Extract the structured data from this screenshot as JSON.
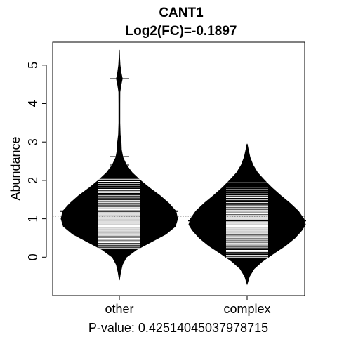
{
  "chart_data": {
    "type": "beanplot",
    "title": "CANT1",
    "subtitle": "Log2(FC)=-0.1897",
    "xlabel": "",
    "ylabel": "Abundance",
    "footer": "P-value: 0.42514045037978715",
    "categories": [
      "other",
      "complex"
    ],
    "yticks": [
      0,
      1,
      2,
      3,
      4,
      5
    ],
    "ylim": [
      -1.0,
      5.6
    ],
    "overall_mean": 1.07,
    "grid": false,
    "beans": [
      {
        "category": "other",
        "mean": 1.2,
        "min": -0.6,
        "max": 5.4,
        "profile": [
          [
            -0.6,
            0.0
          ],
          [
            -0.4,
            0.02
          ],
          [
            -0.2,
            0.05
          ],
          [
            0.0,
            0.12
          ],
          [
            0.2,
            0.3
          ],
          [
            0.4,
            0.55
          ],
          [
            0.6,
            0.8
          ],
          [
            0.8,
            0.96
          ],
          [
            1.0,
            1.0
          ],
          [
            1.2,
            0.97
          ],
          [
            1.4,
            0.85
          ],
          [
            1.6,
            0.7
          ],
          [
            1.8,
            0.52
          ],
          [
            2.0,
            0.36
          ],
          [
            2.2,
            0.22
          ],
          [
            2.4,
            0.12
          ],
          [
            2.6,
            0.06
          ],
          [
            2.8,
            0.035
          ],
          [
            3.0,
            0.03
          ],
          [
            3.2,
            0.015
          ],
          [
            3.5,
            0.008
          ],
          [
            4.0,
            0.008
          ],
          [
            4.3,
            0.01
          ],
          [
            4.5,
            0.03
          ],
          [
            4.65,
            0.05
          ],
          [
            4.8,
            0.03
          ],
          [
            5.0,
            0.012
          ],
          [
            5.2,
            0.005
          ],
          [
            5.4,
            0.0
          ]
        ],
        "observations": [
          0.05,
          0.1,
          0.15,
          0.2,
          0.24,
          0.28,
          0.32,
          0.35,
          0.38,
          0.42,
          0.45,
          0.48,
          0.5,
          0.53,
          0.56,
          0.58,
          0.61,
          0.63,
          0.66,
          0.68,
          0.7,
          0.72,
          0.74,
          0.76,
          0.78,
          0.8,
          0.82,
          0.84,
          0.86,
          0.88,
          0.9,
          0.92,
          0.94,
          0.96,
          0.98,
          1.0,
          1.02,
          1.04,
          1.06,
          1.08,
          1.1,
          1.12,
          1.14,
          1.16,
          1.18,
          1.2,
          1.22,
          1.24,
          1.26,
          1.28,
          1.3,
          1.33,
          1.36,
          1.39,
          1.42,
          1.45,
          1.48,
          1.52,
          1.56,
          1.6,
          1.64,
          1.68,
          1.72,
          1.77,
          1.82,
          1.87,
          1.92,
          1.97,
          2.03,
          2.1,
          2.18,
          2.25,
          2.32,
          2.4,
          2.62,
          4.65
        ]
      },
      {
        "category": "complex",
        "mean": 0.95,
        "min": -0.7,
        "max": 2.95,
        "profile": [
          [
            -0.7,
            0.0
          ],
          [
            -0.5,
            0.04
          ],
          [
            -0.3,
            0.12
          ],
          [
            -0.1,
            0.27
          ],
          [
            0.1,
            0.46
          ],
          [
            0.3,
            0.66
          ],
          [
            0.5,
            0.82
          ],
          [
            0.7,
            0.94
          ],
          [
            0.85,
            1.0
          ],
          [
            1.0,
            0.97
          ],
          [
            1.2,
            0.88
          ],
          [
            1.4,
            0.74
          ],
          [
            1.6,
            0.58
          ],
          [
            1.8,
            0.43
          ],
          [
            2.0,
            0.3
          ],
          [
            2.2,
            0.18
          ],
          [
            2.4,
            0.1
          ],
          [
            2.6,
            0.05
          ],
          [
            2.8,
            0.02
          ],
          [
            2.95,
            0.0
          ]
        ],
        "observations": [
          0.0,
          0.05,
          0.1,
          0.14,
          0.18,
          0.22,
          0.26,
          0.3,
          0.33,
          0.36,
          0.39,
          0.42,
          0.45,
          0.48,
          0.51,
          0.54,
          0.57,
          0.6,
          0.62,
          0.64,
          0.66,
          0.68,
          0.7,
          0.72,
          0.74,
          0.76,
          0.78,
          0.8,
          0.82,
          0.84,
          0.86,
          0.88,
          0.9,
          0.92,
          0.94,
          0.96,
          0.98,
          1.0,
          1.02,
          1.04,
          1.06,
          1.08,
          1.1,
          1.13,
          1.16,
          1.19,
          1.22,
          1.25,
          1.28,
          1.31,
          1.34,
          1.38,
          1.42,
          1.46,
          1.5,
          1.55,
          1.6,
          1.65,
          1.7,
          1.76,
          1.82,
          1.88,
          1.94,
          2.0,
          2.07,
          2.14,
          2.2
        ]
      }
    ]
  }
}
